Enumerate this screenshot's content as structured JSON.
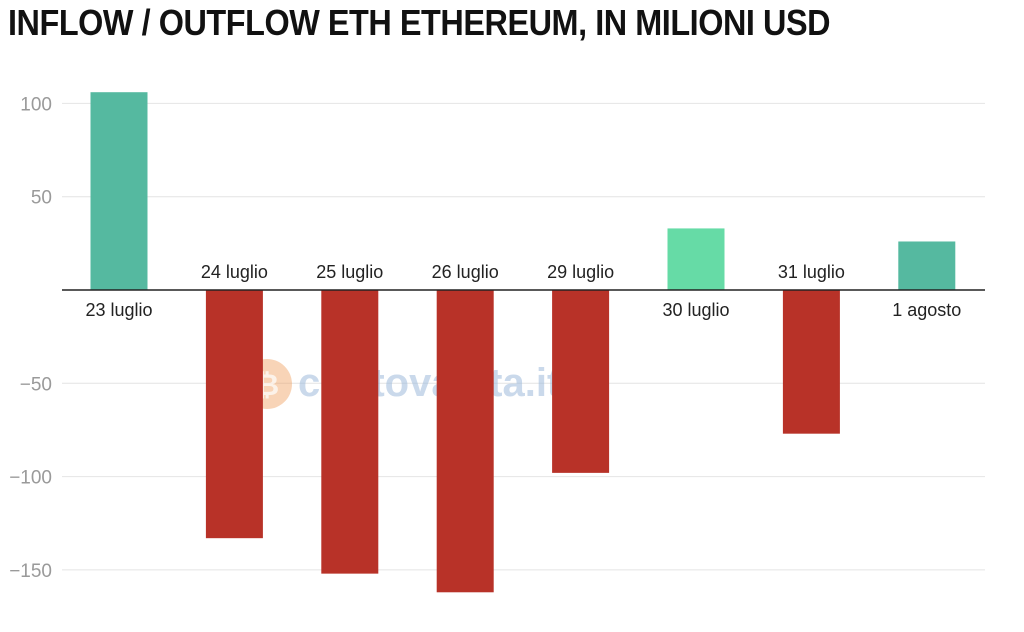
{
  "chart_data": {
    "type": "bar",
    "title": "INFLOW / OUTFLOW ETH ETHEREUM, IN MILIONI USD",
    "xlabel": "",
    "ylabel": "",
    "ylim": [
      -165,
      110
    ],
    "yticks": [
      100,
      50,
      -50,
      -100,
      -150
    ],
    "ytick_labels": [
      "100",
      "50",
      "−50",
      "−100",
      "−150"
    ],
    "grid": true,
    "categories": [
      "23 luglio",
      "24 luglio",
      "25 luglio",
      "26 luglio",
      "29 luglio",
      "30 luglio",
      "31 luglio",
      "1 agosto"
    ],
    "values": [
      106,
      -133,
      -152,
      -162,
      -98,
      33,
      -77,
      26
    ],
    "colors": [
      "#55b9a0",
      "#b83228",
      "#b83228",
      "#b83228",
      "#b83228",
      "#66dba6",
      "#b83228",
      "#55b9a0"
    ],
    "watermark": "criptovaluta.it®"
  }
}
